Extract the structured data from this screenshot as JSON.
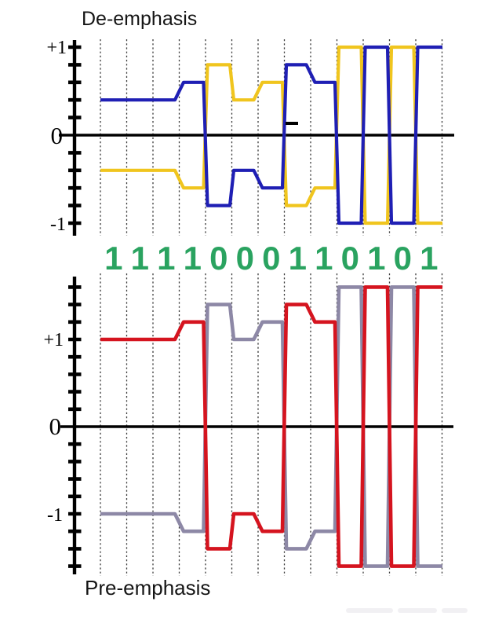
{
  "top_chart": {
    "title": "De-emphasis",
    "y_axis_labels": {
      "plus": "+1",
      "zero": "0",
      "minus": "-1"
    }
  },
  "bottom_chart": {
    "title": "Pre-emphasis",
    "y_axis_labels": {
      "plus": "+1",
      "zero": "0",
      "minus": "-1"
    }
  },
  "bit_sequence": {
    "label_color": "#2aa360",
    "bits": [
      "1",
      "1",
      "1",
      "1",
      "0",
      "0",
      "0",
      "1",
      "1",
      "0",
      "1",
      "0",
      "1"
    ]
  },
  "chart_data": [
    {
      "type": "line",
      "title": "De-emphasis",
      "description": "Differential step waveform pair over 13 bit periods; dotted vertical gridlines mark bit boundaries",
      "n_bits": 13,
      "x_bits": [
        "1",
        "1",
        "1",
        "1",
        "0",
        "0",
        "0",
        "1",
        "1",
        "0",
        "1",
        "0",
        "1"
      ],
      "yticks_labeled": {
        "plus_one": 1,
        "zero": 0,
        "minus_one": -1
      },
      "ytick_step": 0.2,
      "ytick_range": [
        -1,
        1
      ],
      "grid": "vertical-dotted",
      "legend": "none",
      "series": [
        {
          "name": "yellow",
          "color": "#f0c51e",
          "levels_per_bit": [
            -0.4,
            -0.4,
            -0.4,
            -0.6,
            0.8,
            0.4,
            0.6,
            -0.8,
            -0.6,
            1.0,
            -1.0,
            1.0,
            -1.0
          ]
        },
        {
          "name": "blue",
          "color": "#1f1fb4",
          "levels_per_bit": [
            0.4,
            0.4,
            0.4,
            0.6,
            -0.8,
            -0.4,
            -0.6,
            0.8,
            0.6,
            -1.0,
            1.0,
            -1.0,
            1.0
          ]
        }
      ]
    },
    {
      "type": "line",
      "title": "Pre-emphasis",
      "description": "Differential step waveform pair over 13 bit periods; dotted vertical gridlines mark bit boundaries",
      "n_bits": 13,
      "x_bits": [
        "1",
        "1",
        "1",
        "1",
        "0",
        "0",
        "0",
        "1",
        "1",
        "0",
        "1",
        "0",
        "1"
      ],
      "yticks_labeled": {
        "plus_one": 1,
        "zero": 0,
        "minus_one": -1
      },
      "ytick_step": 0.2,
      "ytick_range": [
        -1.6,
        1.6
      ],
      "grid": "vertical-dotted",
      "legend": "none",
      "series": [
        {
          "name": "gray",
          "color": "#8d88a6",
          "levels_per_bit": [
            -1.0,
            -1.0,
            -1.0,
            -1.2,
            1.4,
            1.0,
            1.2,
            -1.4,
            -1.2,
            1.6,
            -1.6,
            1.6,
            -1.6
          ]
        },
        {
          "name": "red",
          "color": "#d5141f",
          "levels_per_bit": [
            1.0,
            1.0,
            1.0,
            1.2,
            -1.4,
            -1.0,
            -1.2,
            1.4,
            1.2,
            -1.6,
            1.6,
            -1.6,
            1.6
          ]
        }
      ]
    }
  ]
}
